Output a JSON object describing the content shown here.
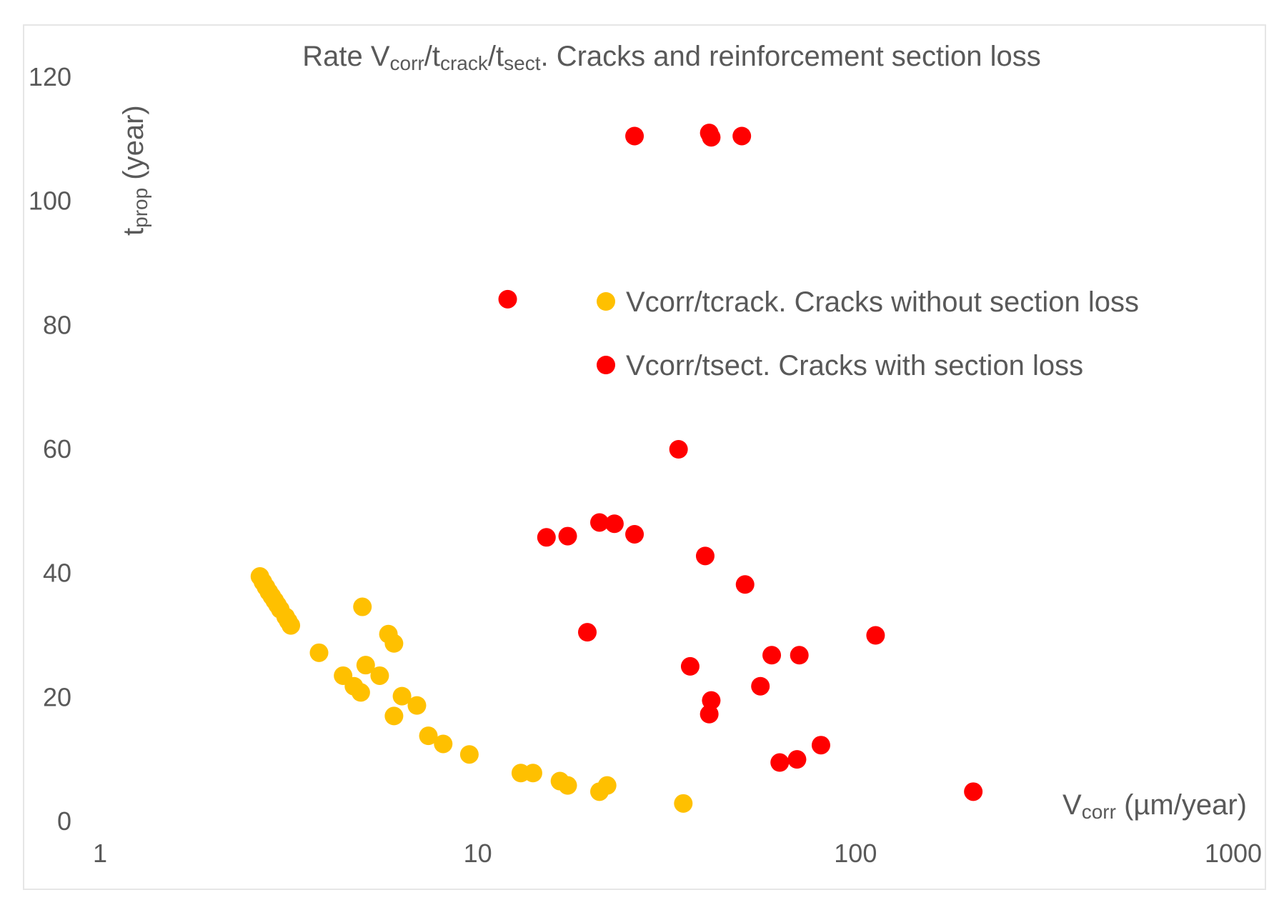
{
  "chart_data": {
    "type": "scatter",
    "title_parts": [
      "Rate V",
      "corr",
      "/t",
      "crack",
      "/t",
      "sect",
      ". Cracks and reinforcement section loss"
    ],
    "xlabel_parts": [
      "V",
      "corr",
      " (µm/year)"
    ],
    "ylabel_parts": [
      "t",
      "prop",
      " (year)"
    ],
    "x_scale": "log",
    "xlim": [
      1,
      1000
    ],
    "ylim": [
      0,
      120
    ],
    "x_ticks": [
      1,
      10,
      100,
      1000
    ],
    "y_ticks": [
      0,
      20,
      40,
      60,
      80,
      100,
      120
    ],
    "x_tick_labels": [
      "1",
      "10",
      "100",
      "1000"
    ],
    "y_tick_labels": [
      "0",
      "20",
      "40",
      "60",
      "80",
      "100",
      "120"
    ],
    "legend_position": "center-right",
    "series": [
      {
        "name": "Vcorr/tcrack. Cracks without section loss",
        "color": "#FFC000",
        "points": [
          [
            2.65,
            39.5
          ],
          [
            2.7,
            38.6
          ],
          [
            2.75,
            37.8
          ],
          [
            2.8,
            37.0
          ],
          [
            2.85,
            36.3
          ],
          [
            2.9,
            35.6
          ],
          [
            2.95,
            34.9
          ],
          [
            3.0,
            34.2
          ],
          [
            3.1,
            33.0
          ],
          [
            3.15,
            32.3
          ],
          [
            3.2,
            31.6
          ],
          [
            3.8,
            27.2
          ],
          [
            4.4,
            23.5
          ],
          [
            4.7,
            21.8
          ],
          [
            4.9,
            20.8
          ],
          [
            4.95,
            34.6
          ],
          [
            5.05,
            25.2
          ],
          [
            5.5,
            23.5
          ],
          [
            5.8,
            30.2
          ],
          [
            6.0,
            28.7
          ],
          [
            6.0,
            17.0
          ],
          [
            6.3,
            20.2
          ],
          [
            6.9,
            18.7
          ],
          [
            7.4,
            13.8
          ],
          [
            8.1,
            12.5
          ],
          [
            9.5,
            10.8
          ],
          [
            13.0,
            7.8
          ],
          [
            14.0,
            7.8
          ],
          [
            16.5,
            6.5
          ],
          [
            17.3,
            5.8
          ],
          [
            21.0,
            4.8
          ],
          [
            22.0,
            5.8
          ],
          [
            35.0,
            2.9
          ]
        ]
      },
      {
        "name": "Vcorr/tsect. Cracks with section loss",
        "color": "#FF0000",
        "points": [
          [
            26,
            110.5
          ],
          [
            41,
            111.0
          ],
          [
            41.5,
            110.3
          ],
          [
            50,
            110.5
          ],
          [
            12,
            84.2
          ],
          [
            34,
            60.0
          ],
          [
            15.2,
            45.8
          ],
          [
            17.3,
            46.0
          ],
          [
            21.0,
            48.2
          ],
          [
            23.0,
            48.0
          ],
          [
            26.0,
            46.3
          ],
          [
            40,
            42.8
          ],
          [
            51,
            38.2
          ],
          [
            19.5,
            30.5
          ],
          [
            113,
            30.0
          ],
          [
            36.5,
            25.0
          ],
          [
            60,
            26.8
          ],
          [
            71,
            26.8
          ],
          [
            56,
            21.8
          ],
          [
            41.5,
            19.5
          ],
          [
            41,
            17.3
          ],
          [
            81,
            12.3
          ],
          [
            63,
            9.5
          ],
          [
            70,
            10.0
          ],
          [
            205,
            4.8
          ]
        ]
      }
    ]
  }
}
